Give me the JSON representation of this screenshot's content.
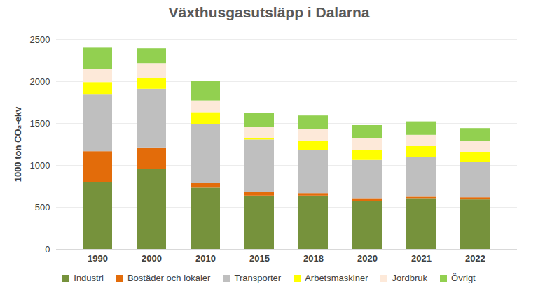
{
  "chart_data": {
    "type": "bar",
    "title": "Växthusgasutsläpp i Dalarna",
    "y_label": "1000 ton CO₂-ekv",
    "categories": [
      "1990",
      "2000",
      "2010",
      "2015",
      "2018",
      "2020",
      "2021",
      "2022"
    ],
    "stacked": true,
    "grid": true,
    "legend": "bottom",
    "ylim": [
      0,
      2500
    ],
    "yticks": [
      0,
      500,
      1000,
      1500,
      2000,
      2500
    ],
    "series": [
      {
        "name": "Industri",
        "color": "#76923c",
        "values": [
          800,
          950,
          730,
          635,
          635,
          575,
          605,
          590
        ]
      },
      {
        "name": "Bostäder och lokaler",
        "color": "#e36c0a",
        "values": [
          365,
          260,
          55,
          40,
          30,
          30,
          25,
          25
        ]
      },
      {
        "name": "Transporter",
        "color": "#bfbfbf",
        "values": [
          675,
          700,
          705,
          630,
          510,
          455,
          470,
          425
        ]
      },
      {
        "name": "Arbetsmaskiner",
        "color": "#ffff00",
        "values": [
          150,
          130,
          140,
          15,
          115,
          120,
          125,
          110
        ]
      },
      {
        "name": "Jordbruk",
        "color": "#fde9d9",
        "values": [
          160,
          175,
          140,
          135,
          135,
          140,
          135,
          135
        ]
      },
      {
        "name": "Övrigt",
        "color": "#92d050",
        "values": [
          255,
          175,
          230,
          165,
          165,
          155,
          160,
          155
        ]
      }
    ]
  }
}
